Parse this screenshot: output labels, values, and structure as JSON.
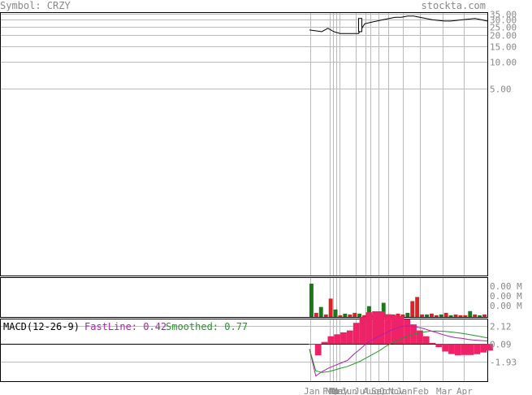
{
  "header": {
    "symbol_text": "Symbol: CRZY",
    "site_text": "stockta.com"
  },
  "colors": {
    "up_volume": "#1a7a1a",
    "down_volume": "#dd2222",
    "fastline": "#aa22aa",
    "smoothed": "#229922",
    "histogram": "#ee2266",
    "grid": "#bbbbbb",
    "price": "#000000"
  },
  "chart_data": [
    {
      "type": "line",
      "panel": "price",
      "y_tick_labels": [
        "35.00",
        "30.00",
        "25.00",
        "20.00",
        "15.00",
        "10.00",
        "5.00"
      ],
      "y_ticks": [
        35,
        30,
        25,
        20,
        15,
        10,
        5
      ],
      "x_tick_labels": [
        "Jan",
        "Feb",
        "Mar",
        "Apr",
        "May",
        "Jun",
        "Jul",
        "Aug",
        "Sep",
        "Oct",
        "Nov",
        "Jan",
        "Feb",
        "Mar",
        "Apr"
      ],
      "series": [
        {
          "close": [
            23,
            22.5,
            22,
            24,
            22,
            21,
            21,
            21,
            21,
            27,
            28,
            29,
            30,
            31,
            32,
            32,
            33,
            33,
            32,
            31,
            30,
            29.5,
            29,
            29,
            29.5,
            30,
            30.5,
            31,
            30,
            29
          ]
        }
      ]
    },
    {
      "type": "bar",
      "panel": "volume",
      "y_tick_labels": [
        "0.00 M",
        "0.00 M",
        "0.00 M"
      ],
      "series": [
        {
          "values": [
            40,
            5,
            12,
            3,
            22,
            9,
            2,
            4,
            3,
            5,
            4,
            2,
            13,
            2,
            2,
            17,
            2,
            3,
            4,
            3,
            5,
            19,
            24,
            3,
            3,
            4,
            2,
            3,
            5,
            2,
            3,
            2,
            2,
            7,
            3,
            2,
            3
          ],
          "up": [
            true,
            false,
            true,
            false,
            false,
            true,
            false,
            true,
            false,
            false,
            true,
            false,
            true,
            false,
            true,
            true,
            false,
            true,
            false,
            false,
            true,
            false,
            false,
            false,
            true,
            false,
            false,
            true,
            false,
            true,
            false,
            false,
            false,
            true,
            false,
            true,
            false
          ]
        }
      ]
    },
    {
      "type": "line",
      "panel": "macd",
      "title": "MACD(12-26-9)",
      "fastline_label": "FastLine: 0.42",
      "smoothed_label": "Smoothed: 0.77",
      "y_tick_labels": [
        "2.12",
        "0.09",
        "-1.93"
      ],
      "y_ticks": [
        2.12,
        0.09,
        -1.93
      ],
      "series": [
        {
          "name": "FastLine",
          "values": [
            -0.5,
            -3.6,
            -3.1,
            -2.7,
            -2.4,
            -2.1,
            -1.8,
            -1.1,
            -0.5,
            0.15,
            0.6,
            1.0,
            1.35,
            1.7,
            2.0,
            2.15,
            2.12,
            2.0,
            1.85,
            1.6,
            1.4,
            1.15,
            0.95,
            0.8,
            0.72,
            0.6,
            0.52,
            0.47,
            0.42
          ]
        },
        {
          "name": "Smoothed",
          "values": [
            -0.5,
            -3.0,
            -3.2,
            -3.1,
            -2.9,
            -2.7,
            -2.5,
            -2.2,
            -1.9,
            -1.5,
            -1.1,
            -0.7,
            -0.2,
            0.2,
            0.55,
            0.85,
            1.1,
            1.3,
            1.45,
            1.55,
            1.57,
            1.55,
            1.48,
            1.4,
            1.3,
            1.18,
            1.06,
            0.92,
            0.77
          ]
        }
      ]
    }
  ]
}
